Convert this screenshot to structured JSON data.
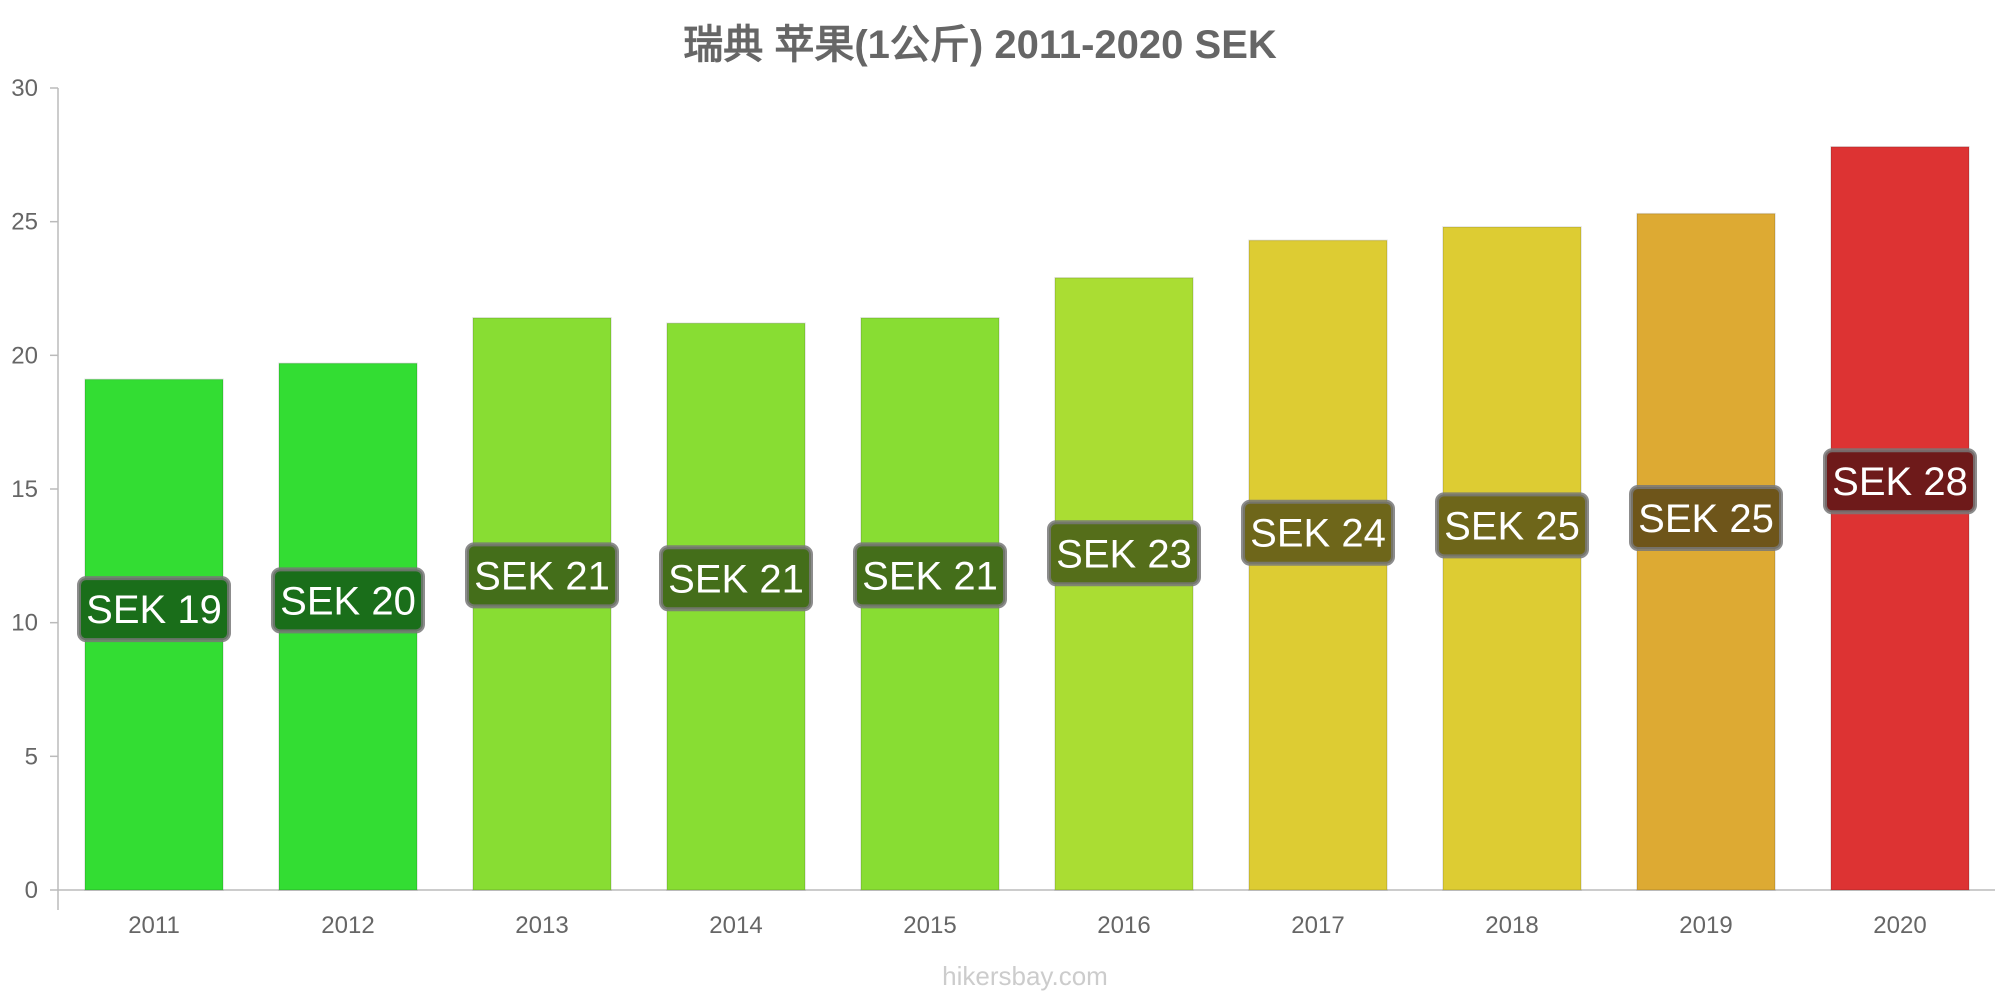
{
  "chart_data": {
    "type": "bar",
    "title": "瑞典 苹果(1公斤) 2011-2020 SEK",
    "categories": [
      "2011",
      "2012",
      "2013",
      "2014",
      "2015",
      "2016",
      "2017",
      "2018",
      "2019",
      "2020"
    ],
    "values": [
      19.1,
      19.7,
      21.4,
      21.2,
      21.4,
      22.9,
      24.3,
      24.8,
      25.3,
      27.8
    ],
    "data_labels": [
      "SEK 19",
      "SEK 20",
      "SEK 21",
      "SEK 21",
      "SEK 21",
      "SEK 23",
      "SEK 24",
      "SEK 25",
      "SEK 25",
      "SEK 28"
    ],
    "bar_colors": [
      "#33dd33",
      "#33dd33",
      "#88dd33",
      "#88dd33",
      "#88dd33",
      "#aadd33",
      "#ddcc33",
      "#ddcc33",
      "#ddaa33",
      "#dd3333"
    ],
    "label_bg_colors": [
      "#1a6e1a",
      "#1a6e1a",
      "#446e1a",
      "#446e1a",
      "#446e1a",
      "#556e1a",
      "#6e661a",
      "#6e661a",
      "#6e551a",
      "#6e1a1a"
    ],
    "ylim": [
      0,
      30
    ],
    "yticks": [
      "0",
      "5",
      "10",
      "15",
      "20",
      "25",
      "30"
    ],
    "ytick_values": [
      0,
      5,
      10,
      15,
      20,
      25,
      30
    ],
    "xlabel": "",
    "ylabel": "",
    "grid": false,
    "legend": "none"
  },
  "watermark": "hikersbay.com"
}
